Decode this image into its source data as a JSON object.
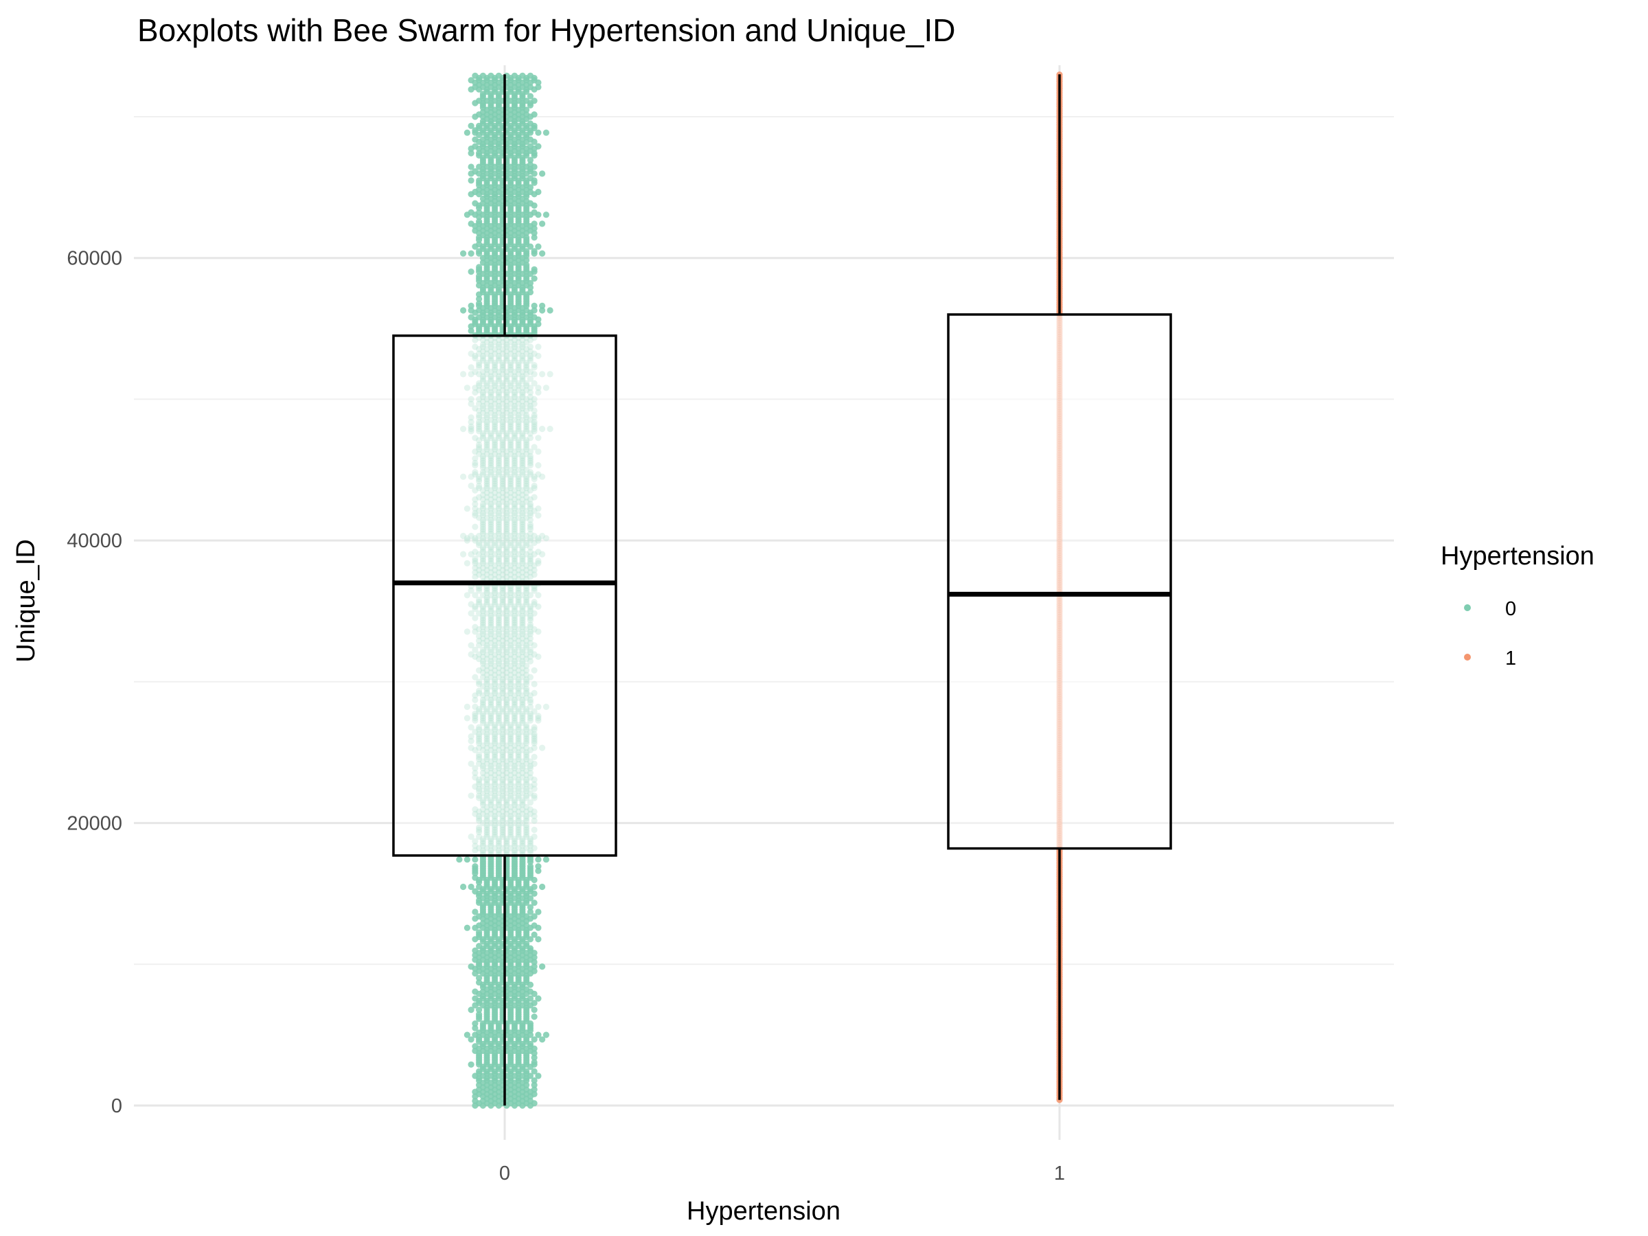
{
  "chart_data": {
    "type": "boxplot-beeswarm",
    "title": "Boxplots with Bee Swarm for Hypertension and Unique_ID",
    "xlabel": "Hypertension",
    "ylabel": "Unique_ID",
    "categories": [
      "0",
      "1"
    ],
    "y_ticks": [
      0,
      20000,
      40000,
      60000
    ],
    "ylim": [
      -3000,
      75000
    ],
    "grid": true,
    "legend": {
      "title": "Hypertension",
      "placement": "right",
      "entries": [
        {
          "label": "0",
          "color": "#7fcdb1"
        },
        {
          "label": "1",
          "color": "#f4966f"
        }
      ]
    },
    "boxes": [
      {
        "category": "0",
        "min": 0,
        "q1": 17700,
        "median": 37000,
        "q3": 54500,
        "max": 73000,
        "color": "#7fcdb1",
        "n_points": 3300
      },
      {
        "category": "1",
        "min": 400,
        "q1": 18200,
        "median": 36200,
        "q3": 56000,
        "max": 73000,
        "color": "#f4966f",
        "n_points": 420
      }
    ]
  }
}
